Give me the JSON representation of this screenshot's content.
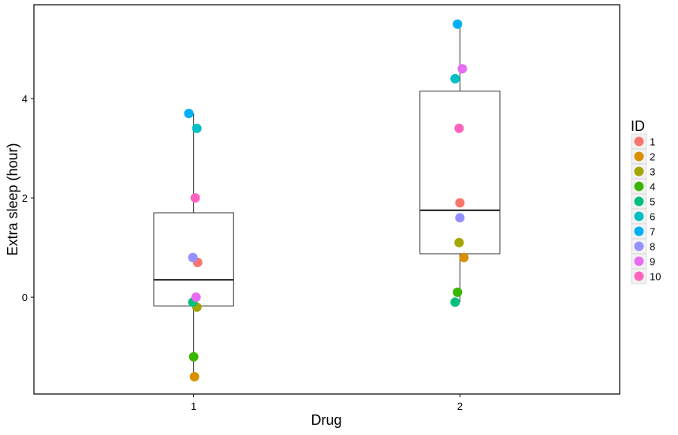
{
  "chart_data": {
    "type": "boxplot+jitter",
    "xlabel": "Drug",
    "ylabel": "Extra sleep (hour)",
    "categories": [
      "1",
      "2"
    ],
    "xlim": [
      0.4,
      2.6
    ],
    "ylim": [
      -1.95,
      5.89
    ],
    "yticks": [
      0,
      2,
      4
    ],
    "grid": false,
    "legend": {
      "title": "ID",
      "position": "right"
    },
    "boxes": [
      {
        "group": "1",
        "min": -1.6,
        "q1": -0.175,
        "median": 0.35,
        "q3": 1.7,
        "max": 3.7
      },
      {
        "group": "2",
        "min": -0.1,
        "q1": 0.875,
        "median": 1.75,
        "q3": 4.15,
        "max": 5.5
      }
    ],
    "series": [
      {
        "name": "1",
        "color": "#F8766D",
        "points": [
          {
            "x": 1.015,
            "y": 0.7
          },
          {
            "x": 2.0,
            "y": 1.9
          }
        ]
      },
      {
        "name": "2",
        "color": "#D89000",
        "points": [
          {
            "x": 1.003,
            "y": -1.6
          },
          {
            "x": 2.015,
            "y": 0.8
          }
        ]
      },
      {
        "name": "3",
        "color": "#A3A500",
        "points": [
          {
            "x": 1.012,
            "y": -0.2
          },
          {
            "x": 1.997,
            "y": 1.1
          }
        ]
      },
      {
        "name": "4",
        "color": "#39B600",
        "points": [
          {
            "x": 1.0,
            "y": -1.2
          },
          {
            "x": 1.991,
            "y": 0.1
          }
        ]
      },
      {
        "name": "5",
        "color": "#00BF7D",
        "points": [
          {
            "x": 0.997,
            "y": -0.1
          },
          {
            "x": 1.982,
            "y": -0.1
          }
        ]
      },
      {
        "name": "6",
        "color": "#00BFC4",
        "points": [
          {
            "x": 1.012,
            "y": 3.4
          },
          {
            "x": 1.982,
            "y": 4.4
          }
        ]
      },
      {
        "name": "7",
        "color": "#00B0F6",
        "points": [
          {
            "x": 0.982,
            "y": 3.7
          },
          {
            "x": 1.991,
            "y": 5.5
          }
        ]
      },
      {
        "name": "8",
        "color": "#9590FF",
        "points": [
          {
            "x": 0.997,
            "y": 0.8
          },
          {
            "x": 2.0,
            "y": 1.6
          }
        ]
      },
      {
        "name": "9",
        "color": "#E76BF3",
        "points": [
          {
            "x": 1.009,
            "y": 0.0
          },
          {
            "x": 2.009,
            "y": 4.6
          }
        ]
      },
      {
        "name": "10",
        "color": "#FF62BC",
        "points": [
          {
            "x": 1.006,
            "y": 2.0
          },
          {
            "x": 1.997,
            "y": 3.4
          }
        ]
      }
    ]
  }
}
